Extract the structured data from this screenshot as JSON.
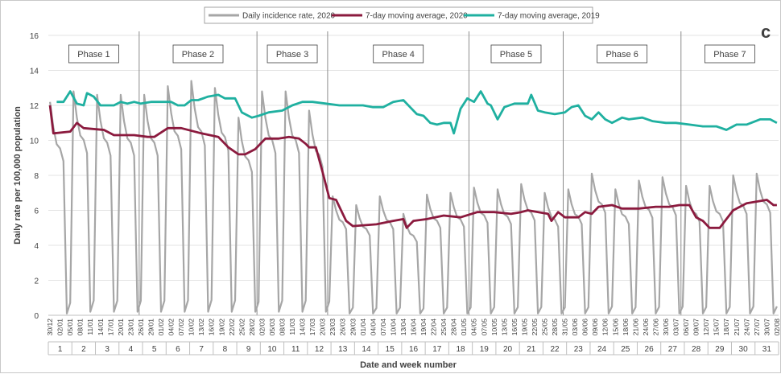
{
  "chart_data": {
    "type": "line",
    "panel_label": "c",
    "ylabel": "Daily rate per 100,000 population",
    "xlabel": "Date and week number",
    "ylim": [
      0,
      16
    ],
    "yticks": [
      0,
      2,
      4,
      6,
      8,
      10,
      12,
      14,
      16
    ],
    "grid": "horizontal",
    "legend_position": "top-center",
    "x_start_date": "30/12",
    "x_day_count": 217,
    "date_labels": [
      {
        "day": 0,
        "label": "30/12"
      },
      {
        "day": 3,
        "label": "02/01"
      },
      {
        "day": 6,
        "label": "05/01"
      },
      {
        "day": 9,
        "label": "08/01"
      },
      {
        "day": 12,
        "label": "11/01"
      },
      {
        "day": 15,
        "label": "14/01"
      },
      {
        "day": 18,
        "label": "17/01"
      },
      {
        "day": 21,
        "label": "20/01"
      },
      {
        "day": 24,
        "label": "23/01"
      },
      {
        "day": 27,
        "label": "26/01"
      },
      {
        "day": 30,
        "label": "29/01"
      },
      {
        "day": 33,
        "label": "01/02"
      },
      {
        "day": 36,
        "label": "04/02"
      },
      {
        "day": 39,
        "label": "07/02"
      },
      {
        "day": 42,
        "label": "10/02"
      },
      {
        "day": 45,
        "label": "13/02"
      },
      {
        "day": 48,
        "label": "16/02"
      },
      {
        "day": 51,
        "label": "19/02"
      },
      {
        "day": 54,
        "label": "22/02"
      },
      {
        "day": 57,
        "label": "25/02"
      },
      {
        "day": 60,
        "label": "28/02"
      },
      {
        "day": 63,
        "label": "02/03"
      },
      {
        "day": 66,
        "label": "05/03"
      },
      {
        "day": 69,
        "label": "08/03"
      },
      {
        "day": 72,
        "label": "11/03"
      },
      {
        "day": 75,
        "label": "14/03"
      },
      {
        "day": 78,
        "label": "17/03"
      },
      {
        "day": 81,
        "label": "20/03"
      },
      {
        "day": 84,
        "label": "23/03"
      },
      {
        "day": 87,
        "label": "26/03"
      },
      {
        "day": 90,
        "label": "29/03"
      },
      {
        "day": 93,
        "label": "01/04"
      },
      {
        "day": 96,
        "label": "04/04"
      },
      {
        "day": 99,
        "label": "07/04"
      },
      {
        "day": 102,
        "label": "10/04"
      },
      {
        "day": 105,
        "label": "13/04"
      },
      {
        "day": 108,
        "label": "16/04"
      },
      {
        "day": 111,
        "label": "19/04"
      },
      {
        "day": 114,
        "label": "22/04"
      },
      {
        "day": 117,
        "label": "25/04"
      },
      {
        "day": 120,
        "label": "28/04"
      },
      {
        "day": 123,
        "label": "01/05"
      },
      {
        "day": 126,
        "label": "04/05"
      },
      {
        "day": 129,
        "label": "07/05"
      },
      {
        "day": 132,
        "label": "10/05"
      },
      {
        "day": 135,
        "label": "13/05"
      },
      {
        "day": 138,
        "label": "16/05"
      },
      {
        "day": 141,
        "label": "19/05"
      },
      {
        "day": 144,
        "label": "22/05"
      },
      {
        "day": 147,
        "label": "25/05"
      },
      {
        "day": 150,
        "label": "28/05"
      },
      {
        "day": 153,
        "label": "31/05"
      },
      {
        "day": 156,
        "label": "03/06"
      },
      {
        "day": 159,
        "label": "06/06"
      },
      {
        "day": 162,
        "label": "09/06"
      },
      {
        "day": 165,
        "label": "12/06"
      },
      {
        "day": 168,
        "label": "15/06"
      },
      {
        "day": 171,
        "label": "18/06"
      },
      {
        "day": 174,
        "label": "21/06"
      },
      {
        "day": 177,
        "label": "24/06"
      },
      {
        "day": 180,
        "label": "27/06"
      },
      {
        "day": 183,
        "label": "30/06"
      },
      {
        "day": 186,
        "label": "03/07"
      },
      {
        "day": 189,
        "label": "06/07"
      },
      {
        "day": 192,
        "label": "09/07"
      },
      {
        "day": 195,
        "label": "12/07"
      },
      {
        "day": 198,
        "label": "15/07"
      },
      {
        "day": 201,
        "label": "18/07"
      },
      {
        "day": 204,
        "label": "21/07"
      },
      {
        "day": 207,
        "label": "24/07"
      },
      {
        "day": 210,
        "label": "27/07"
      },
      {
        "day": 213,
        "label": "30/07"
      },
      {
        "day": 216,
        "label": "02/08"
      }
    ],
    "weeks": [
      "1",
      "2",
      "3",
      "4",
      "5",
      "6",
      "7",
      "8",
      "9",
      "10",
      "11",
      "12",
      "13",
      "14",
      "15",
      "16",
      "17",
      "18",
      "19",
      "20",
      "21",
      "22",
      "23",
      "24",
      "25",
      "26",
      "27",
      "28",
      "29",
      "30",
      "31"
    ],
    "phases": [
      {
        "label": "Phase 1",
        "start_day": 0,
        "end_day": 27
      },
      {
        "label": "Phase 2",
        "start_day": 27,
        "end_day": 62
      },
      {
        "label": "Phase 3",
        "start_day": 62,
        "end_day": 83
      },
      {
        "label": "Phase 4",
        "start_day": 83,
        "end_day": 125
      },
      {
        "label": "Phase 5",
        "start_day": 125,
        "end_day": 153
      },
      {
        "label": "Phase 6",
        "start_day": 153,
        "end_day": 188
      },
      {
        "label": "Phase 7",
        "start_day": 188,
        "end_day": 217
      }
    ],
    "series": [
      {
        "name": "Daily incidence rate, 2020",
        "color": "#a6a6a6",
        "style": "weekly-cycle",
        "weekly_peak": [
          12.2,
          12.8,
          12.6,
          12.6,
          12.6,
          13.1,
          13.4,
          13.0,
          11.3,
          12.8,
          12.8,
          11.7,
          6.8,
          6.3,
          6.8,
          5.8,
          6.9,
          7.0,
          7.3,
          7.2,
          7.5,
          7.0,
          7.2,
          8.1,
          7.2,
          7.7,
          7.9,
          7.4,
          7.4,
          8.0,
          8.1
        ],
        "weekly_trough": [
          0.1,
          0.2,
          0.2,
          0.2,
          0.2,
          0.2,
          0.2,
          0.2,
          0.2,
          0.2,
          0.2,
          0.2,
          0.1,
          0.1,
          0.1,
          0.1,
          0.1,
          0.1,
          0.1,
          0.1,
          0.1,
          0.1,
          0.1,
          0.1,
          0.1,
          0.1,
          0.1,
          0.1,
          0.1,
          0.1,
          0.1
        ]
      },
      {
        "name": "7-day moving average, 2020",
        "color": "#8b1a3e",
        "points": [
          [
            0,
            12.0
          ],
          [
            1,
            10.4
          ],
          [
            6,
            10.5
          ],
          [
            8,
            11.0
          ],
          [
            10,
            10.7
          ],
          [
            16,
            10.6
          ],
          [
            19,
            10.3
          ],
          [
            25,
            10.3
          ],
          [
            29,
            10.2
          ],
          [
            31,
            10.2
          ],
          [
            35,
            10.7
          ],
          [
            39,
            10.7
          ],
          [
            45,
            10.4
          ],
          [
            50,
            10.2
          ],
          [
            53,
            9.6
          ],
          [
            56,
            9.2
          ],
          [
            58,
            9.2
          ],
          [
            61,
            9.5
          ],
          [
            64,
            10.1
          ],
          [
            68,
            10.1
          ],
          [
            71,
            10.2
          ],
          [
            74,
            10.1
          ],
          [
            76,
            9.8
          ],
          [
            77,
            9.6
          ],
          [
            79,
            9.6
          ],
          [
            81,
            8.2
          ],
          [
            83,
            6.7
          ],
          [
            85,
            6.6
          ],
          [
            88,
            5.4
          ],
          [
            90,
            5.1
          ],
          [
            97,
            5.2
          ],
          [
            102,
            5.4
          ],
          [
            105,
            5.5
          ],
          [
            106,
            5.0
          ],
          [
            108,
            5.4
          ],
          [
            112,
            5.5
          ],
          [
            117,
            5.7
          ],
          [
            122,
            5.6
          ],
          [
            127,
            5.9
          ],
          [
            132,
            5.9
          ],
          [
            137,
            5.8
          ],
          [
            140,
            5.9
          ],
          [
            142,
            6.0
          ],
          [
            148,
            5.8
          ],
          [
            149,
            5.4
          ],
          [
            151,
            5.9
          ],
          [
            153,
            5.6
          ],
          [
            157,
            5.6
          ],
          [
            159,
            5.9
          ],
          [
            161,
            5.8
          ],
          [
            163,
            6.2
          ],
          [
            167,
            6.3
          ],
          [
            170,
            6.1
          ],
          [
            175,
            6.1
          ],
          [
            180,
            6.2
          ],
          [
            184,
            6.2
          ],
          [
            187,
            6.3
          ],
          [
            190,
            6.3
          ],
          [
            192,
            5.6
          ],
          [
            194,
            5.4
          ],
          [
            196,
            5.0
          ],
          [
            199,
            5.0
          ],
          [
            201,
            5.5
          ],
          [
            203,
            6.0
          ],
          [
            205,
            6.2
          ],
          [
            207,
            6.4
          ],
          [
            210,
            6.5
          ],
          [
            213,
            6.6
          ],
          [
            215,
            6.3
          ],
          [
            216,
            6.3
          ]
        ]
      },
      {
        "name": "7-day moving average, 2019",
        "color": "#1fb0a0",
        "points": [
          [
            2,
            12.2
          ],
          [
            4,
            12.2
          ],
          [
            6,
            12.8
          ],
          [
            8,
            12.1
          ],
          [
            10,
            12.0
          ],
          [
            11,
            12.7
          ],
          [
            13,
            12.5
          ],
          [
            15,
            12.0
          ],
          [
            19,
            12.0
          ],
          [
            21,
            12.2
          ],
          [
            23,
            12.1
          ],
          [
            25,
            12.2
          ],
          [
            27,
            12.1
          ],
          [
            30,
            12.2
          ],
          [
            33,
            12.2
          ],
          [
            36,
            12.2
          ],
          [
            38,
            12.0
          ],
          [
            40,
            12.0
          ],
          [
            42,
            12.3
          ],
          [
            44,
            12.3
          ],
          [
            47,
            12.5
          ],
          [
            50,
            12.6
          ],
          [
            52,
            12.4
          ],
          [
            55,
            12.4
          ],
          [
            57,
            11.6
          ],
          [
            60,
            11.3
          ],
          [
            62,
            11.4
          ],
          [
            65,
            11.6
          ],
          [
            69,
            11.7
          ],
          [
            72,
            12.0
          ],
          [
            75,
            12.2
          ],
          [
            78,
            12.2
          ],
          [
            82,
            12.1
          ],
          [
            86,
            12.0
          ],
          [
            90,
            12.0
          ],
          [
            93,
            12.0
          ],
          [
            96,
            11.9
          ],
          [
            99,
            11.9
          ],
          [
            102,
            12.2
          ],
          [
            105,
            12.3
          ],
          [
            107,
            11.9
          ],
          [
            109,
            11.5
          ],
          [
            111,
            11.4
          ],
          [
            113,
            11.0
          ],
          [
            115,
            10.9
          ],
          [
            117,
            11.0
          ],
          [
            119,
            11.0
          ],
          [
            120,
            10.4
          ],
          [
            122,
            11.8
          ],
          [
            124,
            12.4
          ],
          [
            126,
            12.2
          ],
          [
            128,
            12.8
          ],
          [
            130,
            12.1
          ],
          [
            131,
            12.0
          ],
          [
            133,
            11.2
          ],
          [
            135,
            11.9
          ],
          [
            138,
            12.1
          ],
          [
            142,
            12.1
          ],
          [
            143,
            12.6
          ],
          [
            145,
            11.7
          ],
          [
            147,
            11.6
          ],
          [
            150,
            11.5
          ],
          [
            153,
            11.6
          ],
          [
            155,
            11.9
          ],
          [
            157,
            12.0
          ],
          [
            159,
            11.4
          ],
          [
            161,
            11.2
          ],
          [
            163,
            11.6
          ],
          [
            165,
            11.2
          ],
          [
            167,
            11.0
          ],
          [
            170,
            11.3
          ],
          [
            172,
            11.2
          ],
          [
            176,
            11.3
          ],
          [
            179,
            11.1
          ],
          [
            183,
            11.0
          ],
          [
            186,
            11.0
          ],
          [
            190,
            10.9
          ],
          [
            194,
            10.8
          ],
          [
            198,
            10.8
          ],
          [
            201,
            10.6
          ],
          [
            204,
            10.9
          ],
          [
            207,
            10.9
          ],
          [
            211,
            11.2
          ],
          [
            214,
            11.2
          ],
          [
            216,
            11.0
          ],
          [
            218,
            11.2
          ]
        ],
        "note": "unused"
      }
    ]
  }
}
